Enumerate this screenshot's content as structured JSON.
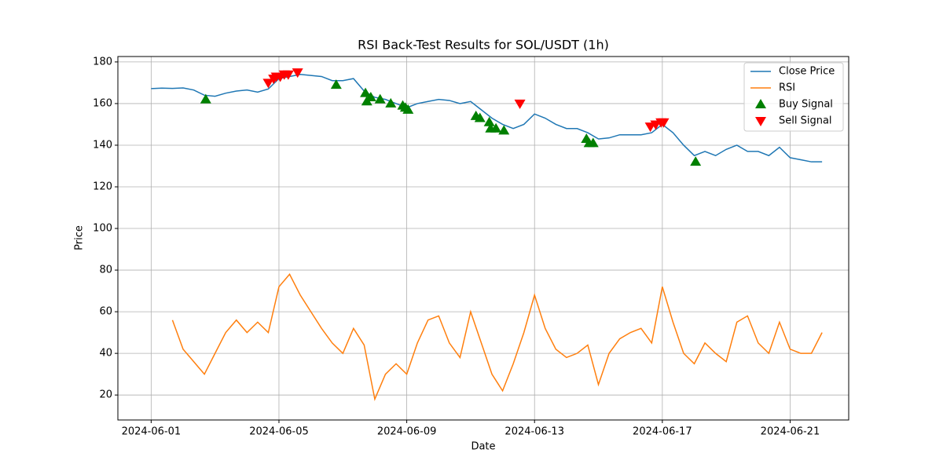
{
  "chart_data": {
    "type": "line",
    "title": "RSI Back-Test Results for SOL/USDT (1h)",
    "x_label": "Date",
    "y_label": "Price",
    "xlim": [
      "2024-05-30 23:00",
      "2024-06-22 20:00"
    ],
    "xticks": [
      "2024-06-01",
      "2024-06-05",
      "2024-06-09",
      "2024-06-13",
      "2024-06-17",
      "2024-06-21"
    ],
    "ylim": [
      8,
      182.6
    ],
    "yticks": [
      20,
      40,
      60,
      80,
      100,
      120,
      140,
      160,
      180
    ],
    "grid": true,
    "legend": "upper right",
    "x": [
      "2024-06-01 00:00",
      "2024-06-01 08:00",
      "2024-06-01 16:00",
      "2024-06-02 00:00",
      "2024-06-02 08:00",
      "2024-06-02 16:00",
      "2024-06-03 00:00",
      "2024-06-03 08:00",
      "2024-06-03 16:00",
      "2024-06-04 00:00",
      "2024-06-04 08:00",
      "2024-06-04 16:00",
      "2024-06-05 00:00",
      "2024-06-05 08:00",
      "2024-06-05 16:00",
      "2024-06-06 00:00",
      "2024-06-06 08:00",
      "2024-06-06 16:00",
      "2024-06-07 00:00",
      "2024-06-07 08:00",
      "2024-06-07 16:00",
      "2024-06-08 00:00",
      "2024-06-08 08:00",
      "2024-06-08 16:00",
      "2024-06-09 00:00",
      "2024-06-09 08:00",
      "2024-06-09 16:00",
      "2024-06-10 00:00",
      "2024-06-10 08:00",
      "2024-06-10 16:00",
      "2024-06-11 00:00",
      "2024-06-11 08:00",
      "2024-06-11 16:00",
      "2024-06-12 00:00",
      "2024-06-12 08:00",
      "2024-06-12 16:00",
      "2024-06-13 00:00",
      "2024-06-13 08:00",
      "2024-06-13 16:00",
      "2024-06-14 00:00",
      "2024-06-14 08:00",
      "2024-06-14 16:00",
      "2024-06-15 00:00",
      "2024-06-15 08:00",
      "2024-06-15 16:00",
      "2024-06-16 00:00",
      "2024-06-16 08:00",
      "2024-06-16 16:00",
      "2024-06-17 00:00",
      "2024-06-17 08:00",
      "2024-06-17 16:00",
      "2024-06-18 00:00",
      "2024-06-18 08:00",
      "2024-06-18 16:00",
      "2024-06-19 00:00",
      "2024-06-19 08:00",
      "2024-06-19 16:00",
      "2024-06-20 00:00",
      "2024-06-20 08:00",
      "2024-06-20 16:00",
      "2024-06-21 00:00",
      "2024-06-21 08:00",
      "2024-06-21 16:00",
      "2024-06-22 00:00"
    ],
    "series": [
      {
        "name": "Close Price",
        "type": "line",
        "color": "#1f77b4",
        "values": [
          167.2,
          167.4,
          167.3,
          167.5,
          166.5,
          164,
          163.5,
          165,
          166,
          166.5,
          165.5,
          167,
          172,
          173,
          174,
          173.5,
          173,
          171,
          171,
          172,
          166,
          163,
          162,
          160,
          158,
          160,
          161,
          162,
          161.5,
          160,
          161,
          157,
          153,
          150,
          148,
          150,
          155,
          153,
          150,
          148,
          148,
          146,
          143,
          143.5,
          145,
          145,
          145,
          146,
          150,
          146,
          140,
          135,
          137,
          135,
          138,
          140,
          137,
          137,
          135,
          139,
          134,
          133,
          132,
          132
        ]
      },
      {
        "name": "RSI",
        "type": "line",
        "color": "#ff7f0e",
        "values": [
          null,
          null,
          56,
          42,
          36,
          30,
          40,
          50,
          56,
          50,
          55,
          50,
          72,
          78,
          68,
          60,
          52,
          45,
          40,
          52,
          44,
          18,
          30,
          35,
          30,
          45,
          56,
          58,
          45,
          38,
          60,
          45,
          30,
          22,
          35,
          50,
          68,
          52,
          42,
          38,
          40,
          44,
          25,
          40,
          47,
          50,
          52,
          45,
          72,
          55,
          40,
          35,
          45,
          40,
          36,
          55,
          58,
          45,
          40,
          55,
          42,
          40,
          40,
          50
        ]
      },
      {
        "name": "Buy Signal",
        "type": "scatter",
        "marker": "^",
        "color": "#008000",
        "x": [
          "2024-06-02 17:00",
          "2024-06-06 19:00",
          "2024-06-07 17:00",
          "2024-06-07 18:00",
          "2024-06-07 21:00",
          "2024-06-08 04:00",
          "2024-06-08 12:00",
          "2024-06-08 21:00",
          "2024-06-08 23:00",
          "2024-06-09 01:00",
          "2024-06-11 04:00",
          "2024-06-11 07:00",
          "2024-06-11 14:00",
          "2024-06-11 15:00",
          "2024-06-11 19:00",
          "2024-06-12 01:00",
          "2024-06-14 15:00",
          "2024-06-14 17:00",
          "2024-06-14 20:00",
          "2024-06-18 01:00"
        ],
        "values": [
          162,
          169,
          165,
          161,
          163,
          162,
          160,
          159,
          158,
          157,
          154,
          153,
          151,
          148,
          148,
          147,
          143,
          141,
          141,
          132
        ]
      },
      {
        "name": "Sell Signal",
        "type": "scatter",
        "marker": "v",
        "color": "#ff0000",
        "x": [
          "2024-06-04 16:00",
          "2024-06-04 20:00",
          "2024-06-04 22:00",
          "2024-06-05 01:00",
          "2024-06-05 04:00",
          "2024-06-05 07:00",
          "2024-06-05 14:00",
          "2024-06-12 13:00",
          "2024-06-16 15:00",
          "2024-06-16 19:00",
          "2024-06-16 23:00",
          "2024-06-17 01:00"
        ],
        "values": [
          170,
          172,
          173,
          173,
          174,
          174,
          175,
          160,
          149,
          150,
          151,
          151
        ]
      }
    ]
  }
}
